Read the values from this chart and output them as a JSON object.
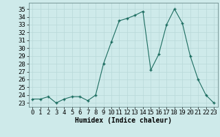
{
  "x": [
    0,
    1,
    2,
    3,
    4,
    5,
    6,
    7,
    8,
    9,
    10,
    11,
    12,
    13,
    14,
    15,
    16,
    17,
    18,
    19,
    20,
    21,
    22,
    23
  ],
  "y": [
    23.5,
    23.5,
    23.8,
    23.0,
    23.5,
    23.8,
    23.8,
    23.3,
    24.0,
    28.0,
    30.8,
    33.5,
    33.8,
    34.2,
    34.7,
    27.2,
    29.2,
    33.0,
    35.0,
    33.2,
    29.0,
    26.0,
    24.0,
    23.0
  ],
  "line_color": "#1a6b5e",
  "marker": "+",
  "marker_size": 3.5,
  "bg_color": "#ceeaea",
  "grid_color": "#b8d8d8",
  "xlabel": "Humidex (Indice chaleur)",
  "ylim": [
    22.5,
    35.8
  ],
  "yticks": [
    23,
    24,
    25,
    26,
    27,
    28,
    29,
    30,
    31,
    32,
    33,
    34,
    35
  ],
  "xticks": [
    0,
    1,
    2,
    3,
    4,
    5,
    6,
    7,
    8,
    9,
    10,
    11,
    12,
    13,
    14,
    15,
    16,
    17,
    18,
    19,
    20,
    21,
    22,
    23
  ],
  "xlabel_fontsize": 7,
  "tick_fontsize": 6.5,
  "line_width": 0.8
}
